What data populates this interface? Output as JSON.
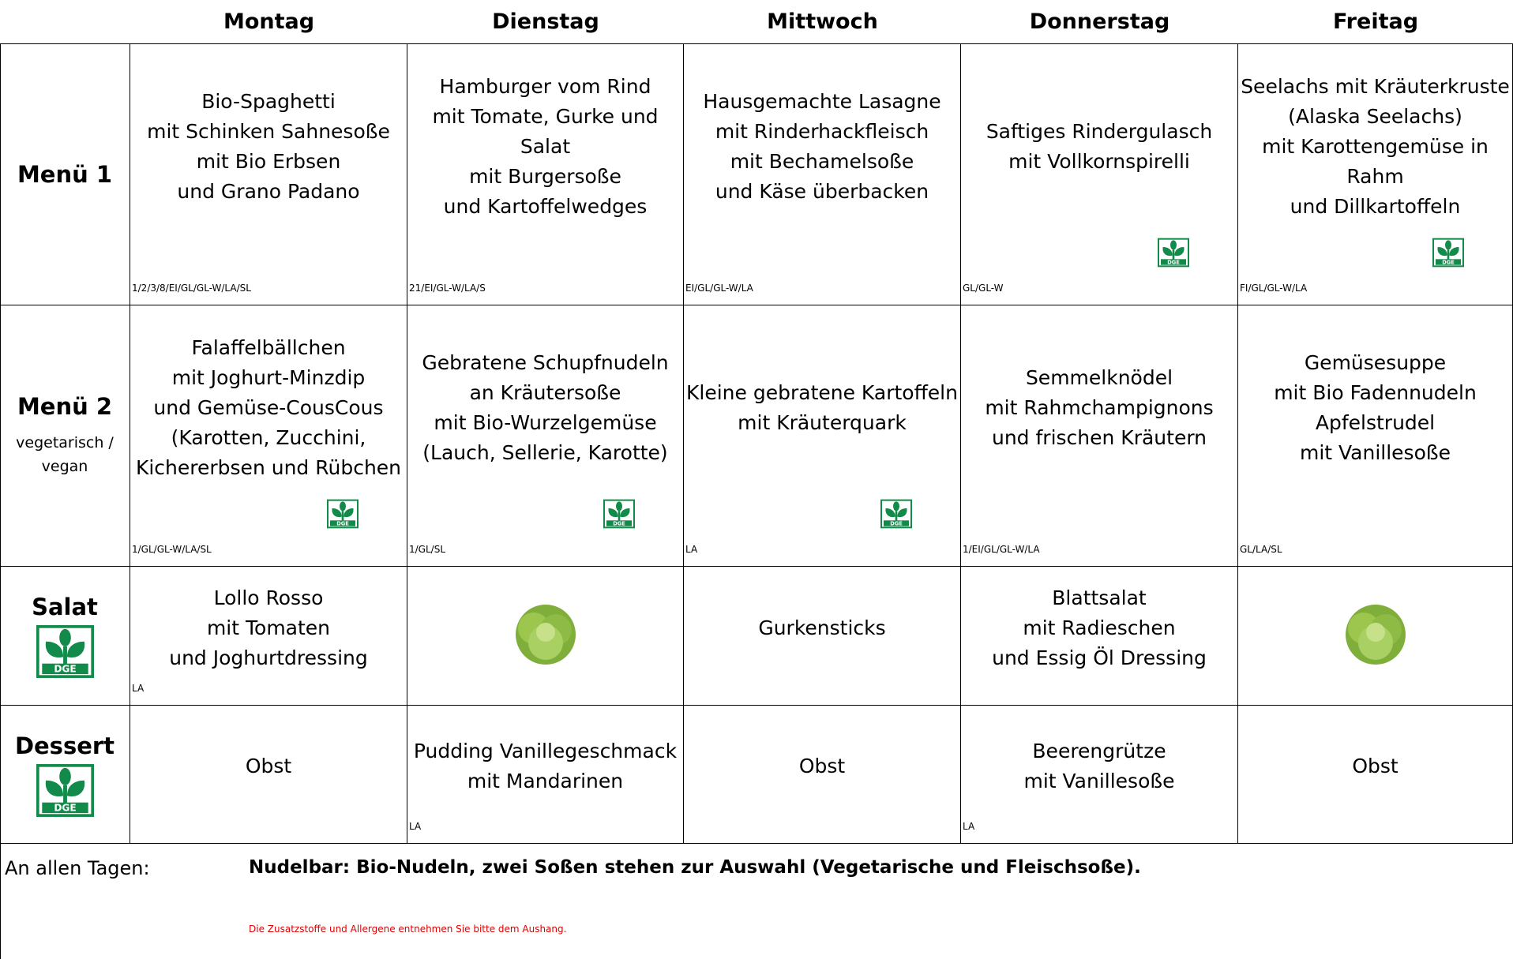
{
  "days": [
    "Montag",
    "Dienstag",
    "Mittwoch",
    "Donnerstag",
    "Freitag"
  ],
  "rows": [
    {
      "label": "Menü 1",
      "cells": [
        {
          "lines": [
            "Bio-Spaghetti",
            "mit Schinken Sahnesoße",
            "mit Bio Erbsen",
            "und Grano Padano"
          ],
          "allergens": "1/2/3/8/EI/GL/GL-W/LA/SL"
        },
        {
          "lines": [
            "Hamburger vom Rind",
            "mit Tomate, Gurke und",
            "Salat",
            "mit Burgersoße",
            "und Kartoffelwedges"
          ],
          "allergens": "21/EI/GL-W/LA/S"
        },
        {
          "lines": [
            "Hausgemachte Lasagne",
            "mit Rinderhackfleisch",
            "mit Bechamelsoße",
            "und Käse überbacken"
          ],
          "allergens": "EI/GL/GL-W/LA"
        },
        {
          "lines": [
            "Saftiges Rindergulasch",
            "mit Vollkornspirelli"
          ],
          "allergens": "GL/GL-W",
          "dge_logo": true
        },
        {
          "lines": [
            "Seelachs mit Kräuterkruste",
            "(Alaska Seelachs)",
            "mit Karottengemüse in",
            "Rahm",
            "und Dillkartoffeln"
          ],
          "allergens": "FI/GL/GL-W/LA",
          "dge_logo": true
        }
      ]
    },
    {
      "label": "Menü 2",
      "sublabel": [
        "vegetarisch /",
        "vegan"
      ],
      "cells": [
        {
          "lines": [
            "Falaffelbällchen",
            "mit Joghurt-Minzdip",
            "und Gemüse-CousCous",
            "(Karotten, Zucchini,",
            "Kichererbsen und Rübchen"
          ],
          "allergens": "1/GL/GL-W/LA/SL",
          "dge_logo": true
        },
        {
          "lines": [
            "Gebratene Schupfnudeln",
            "an Kräutersoße",
            "mit Bio-Wurzelgemüse",
            "(Lauch, Sellerie, Karotte)"
          ],
          "allergens": "1/GL/SL",
          "dge_logo": true
        },
        {
          "lines": [
            "Kleine gebratene Kartoffeln",
            "mit Kräuterquark"
          ],
          "allergens": "LA",
          "dge_logo": true
        },
        {
          "lines": [
            "Semmelknödel",
            "mit Rahmchampignons",
            "und frischen Kräutern"
          ],
          "allergens": "1/EI/GL/GL-W/LA"
        },
        {
          "lines": [
            "Gemüsesuppe",
            "mit Bio Fadennudeln",
            "Apfelstrudel",
            "mit Vanillesoße"
          ],
          "allergens": "GL/LA/SL"
        }
      ]
    },
    {
      "label": "Salat",
      "label_dge_logo": true,
      "cells": [
        {
          "lines": [
            "Lollo Rosso",
            "mit Tomaten",
            "und Joghurtdressing"
          ],
          "allergens": "LA"
        },
        {
          "lettuce_image": true
        },
        {
          "lines": [
            "Gurkensticks"
          ]
        },
        {
          "lines": [
            "Blattsalat",
            "mit Radieschen",
            "und Essig Öl Dressing"
          ]
        },
        {
          "lettuce_image": true
        }
      ]
    },
    {
      "label": "Dessert",
      "label_dge_logo": true,
      "cells": [
        {
          "lines": [
            "Obst"
          ]
        },
        {
          "lines": [
            "Pudding Vanillegeschmack",
            "mit Mandarinen"
          ],
          "allergens": "LA"
        },
        {
          "lines": [
            "Obst"
          ]
        },
        {
          "lines": [
            "Beerengrütze",
            "mit Vanillesoße"
          ],
          "allergens": "LA"
        },
        {
          "lines": [
            "Obst"
          ]
        }
      ]
    }
  ],
  "footer": {
    "label": "An allen Tagen:",
    "text": "Nudelbar: Bio-Nudeln, zwei Soßen stehen zur Auswahl (Vegetarische und Fleischsoße).",
    "note": "Die Zusatzstoffe und Allergene entnehmen Sie bitte dem Aushang."
  }
}
